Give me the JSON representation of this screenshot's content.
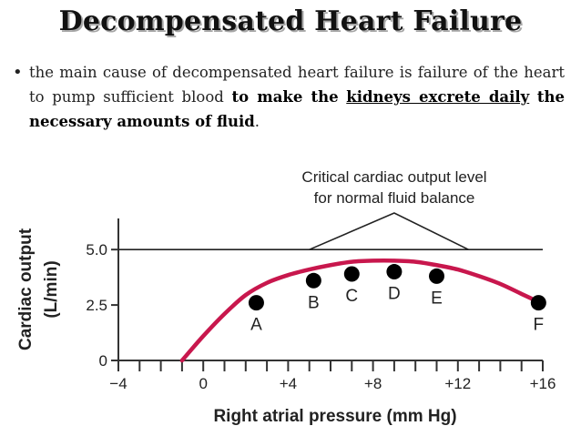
{
  "title": "Decompensated Heart Failure",
  "bullet": {
    "bullet_char": "•",
    "text_plain": "the main cause of decompensated heart failure is failure of the heart to pump sufficient blood",
    "text_bold": "to make the",
    "text_bold_underlined": "kidneys excrete daily",
    "text_bold_tail": "the necessary amounts of fluid",
    "text_end": "."
  },
  "chart_data": {
    "type": "line",
    "ylabel": "Cardiac output",
    "ylabel_unit": "(L/min)",
    "xlabel": "Right atrial pressure (mm Hg)",
    "xlim": [
      -4,
      16
    ],
    "ylim": [
      0,
      5.5
    ],
    "x_ticks": [
      {
        "value": -4,
        "label": "−4"
      },
      {
        "value": 0,
        "label": "0"
      },
      {
        "value": 4,
        "label": "+4"
      },
      {
        "value": 8,
        "label": "+8"
      },
      {
        "value": 12,
        "label": "+12"
      },
      {
        "value": 16,
        "label": "+16"
      }
    ],
    "y_ticks": [
      {
        "value": 0,
        "label": "0"
      },
      {
        "value": 2.5,
        "label": "2.5"
      },
      {
        "value": 5.0,
        "label": "5.0"
      }
    ],
    "reference_line": {
      "y": 5.0,
      "label_line1": "Critical cardiac output level",
      "label_line2": "for normal fluid balance",
      "bracket_x": [
        5,
        9,
        12.5
      ]
    },
    "curve": {
      "color": "#c8174d",
      "x": [
        -1,
        0,
        1,
        2,
        3,
        4,
        5,
        6,
        7,
        8,
        9,
        10,
        11,
        12,
        13,
        14,
        15,
        16
      ],
      "y": [
        0,
        1.1,
        2.1,
        2.95,
        3.5,
        3.85,
        4.1,
        4.3,
        4.45,
        4.5,
        4.5,
        4.45,
        4.3,
        4.1,
        3.8,
        3.45,
        3.0,
        2.55
      ]
    },
    "points": [
      {
        "label": "A",
        "x": 2.5,
        "y": 2.6,
        "label_pos": "below"
      },
      {
        "label": "B",
        "x": 5.2,
        "y": 3.6,
        "label_pos": "below"
      },
      {
        "label": "C",
        "x": 7.0,
        "y": 3.9,
        "label_pos": "below"
      },
      {
        "label": "D",
        "x": 9.0,
        "y": 4.0,
        "label_pos": "below"
      },
      {
        "label": "E",
        "x": 11.0,
        "y": 3.8,
        "label_pos": "below"
      },
      {
        "label": "F",
        "x": 15.8,
        "y": 2.6,
        "label_pos": "below"
      }
    ],
    "grid": false,
    "legend": "none"
  }
}
